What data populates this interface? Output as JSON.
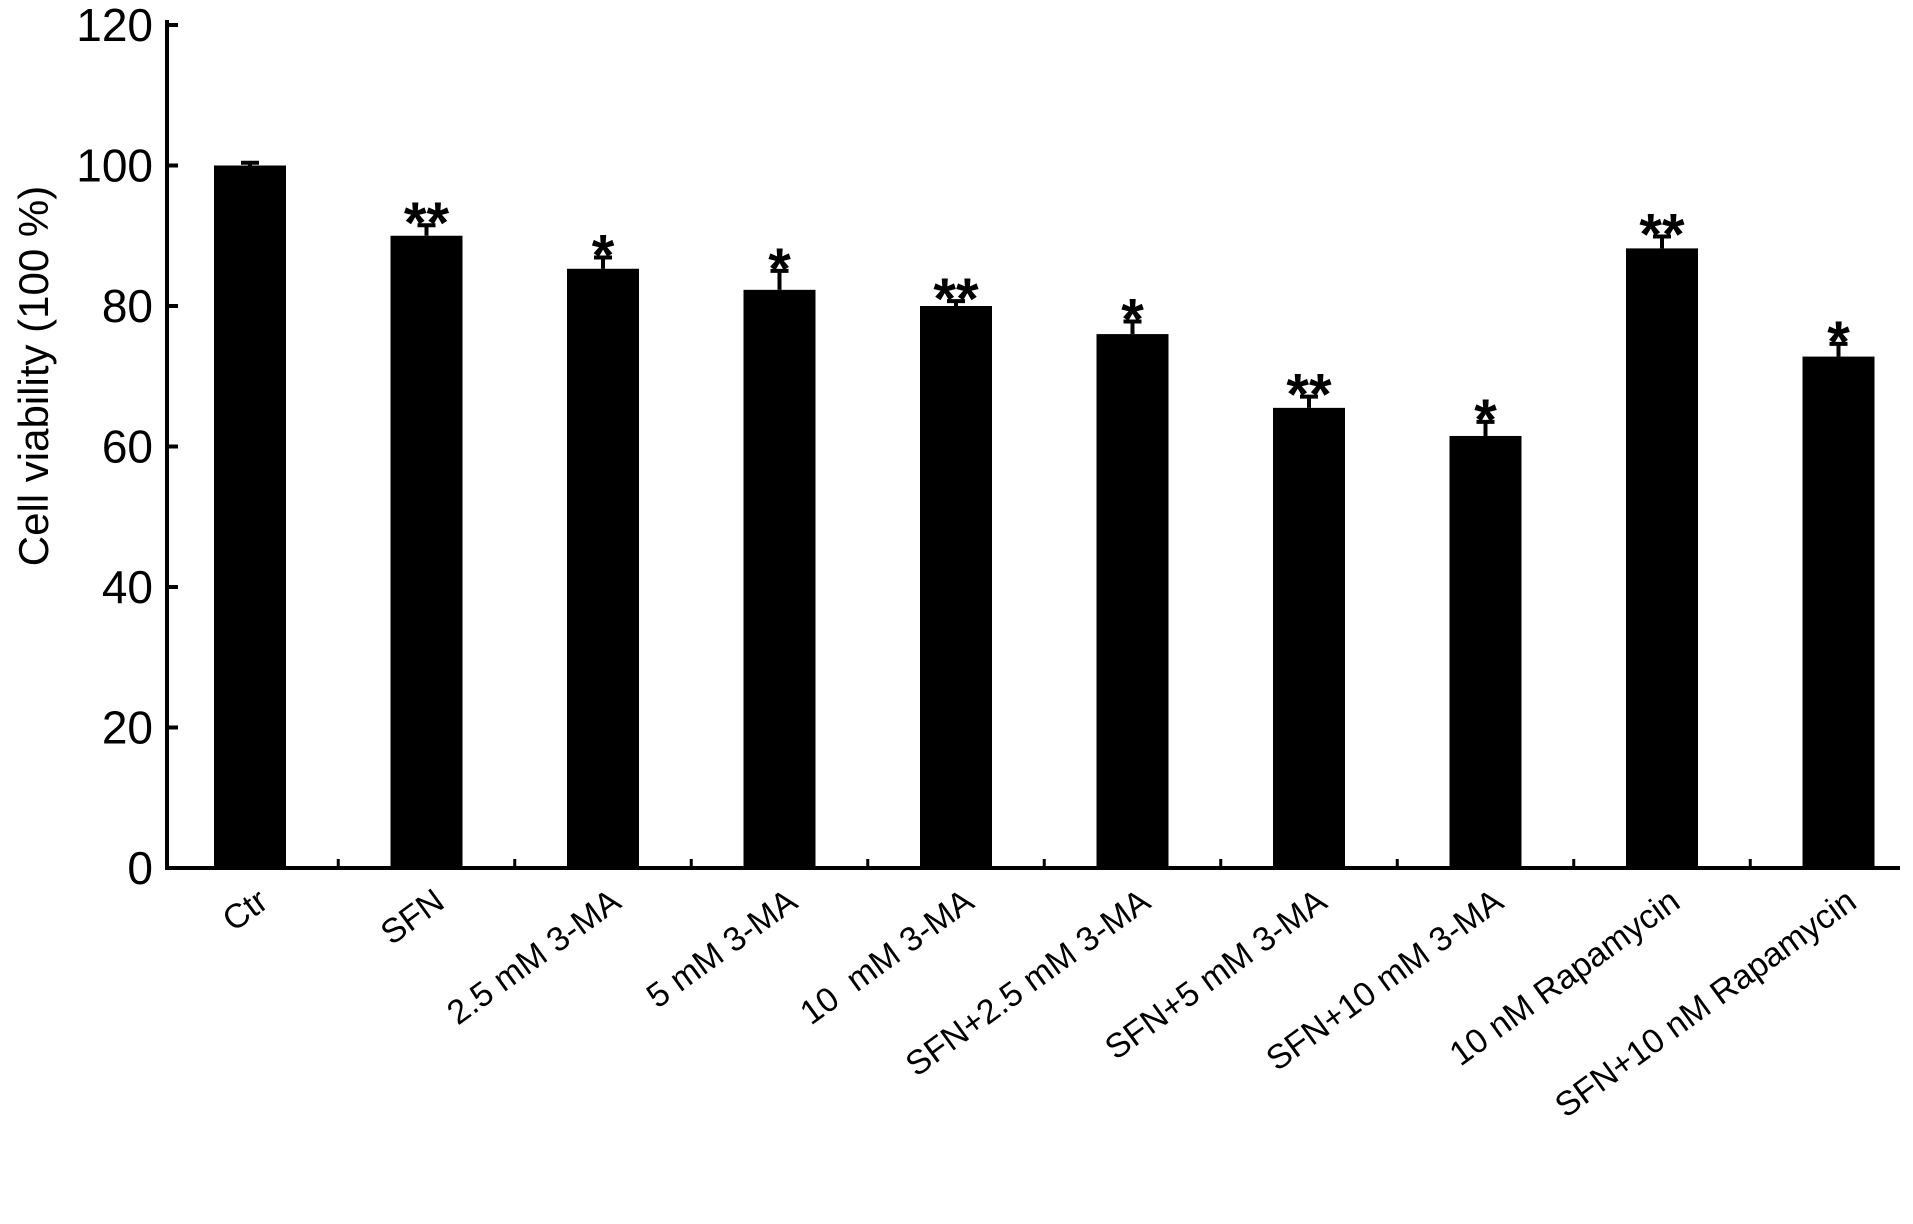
{
  "chart_data": {
    "type": "bar",
    "title": "",
    "xlabel": "",
    "ylabel": "Cell viability (100 %)",
    "ylim": [
      0,
      120
    ],
    "yticks": [
      0,
      20,
      40,
      60,
      80,
      100,
      120
    ],
    "grid": false,
    "legend": "none",
    "categories": [
      "Ctr",
      "SFN",
      "2.5 mM 3-MA",
      "5 mM 3-MA",
      "10  mM 3-MA",
      "SFN+2.5 mM 3-MA",
      "SFN+5 mM 3-MA",
      "SFN+10 mM 3-MA",
      "10 nM Rapamycin",
      "SFN+10 nM Rapamycin"
    ],
    "series": [
      {
        "values": [
          100,
          90,
          85.3,
          82.3,
          80,
          76,
          65.5,
          61.5,
          88.2,
          72.8
        ],
        "errors": [
          0.4,
          1.5,
          1.6,
          2.7,
          0.7,
          1.8,
          1.6,
          2.0,
          1.7,
          1.8
        ],
        "significance": [
          "",
          "**",
          "*",
          "*",
          "**",
          "*",
          "**",
          "*",
          "**",
          "*"
        ]
      }
    ],
    "colors": {
      "bar": "#000000",
      "axis": "#000000",
      "background": "#ffffff"
    }
  }
}
